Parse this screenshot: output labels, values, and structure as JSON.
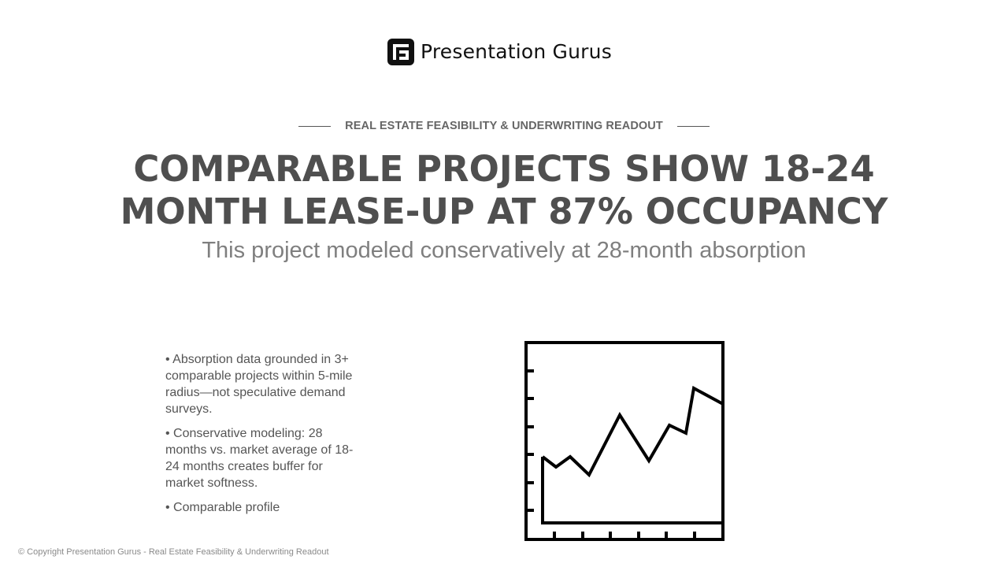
{
  "brand": {
    "logo_text": "Presentation Gurus",
    "color": "#111111"
  },
  "slide": {
    "eyebrow": "REAL ESTATE FEASIBILITY & UNDERWRITING READOUT",
    "title": "COMPARABLE PROJECTS SHOW 18-24 MONTH LEASE-UP AT 87% OCCUPANCY",
    "subtitle": "This project modeled conservatively at 28-month absorption",
    "bullets": [
      "• Absorption data grounded in 3+ comparable projects within 5-mile radius—not speculative demand surveys.",
      "• Conservative modeling: 28 months vs. market average of 18-24 months creates buffer for market softness.",
      "• Comparable profile"
    ],
    "illustration": "line-chart-icon"
  },
  "footer": {
    "copyright": "© Copyright Presentation Gurus - Real Estate Feasibility & Underwriting Readout"
  },
  "colors": {
    "title": "#4f4f4f",
    "subtitle": "#7f7f7f",
    "body_text": "#555555",
    "footer_text": "#8a8a8a",
    "icon_stroke": "#000000",
    "background": "#ffffff"
  }
}
